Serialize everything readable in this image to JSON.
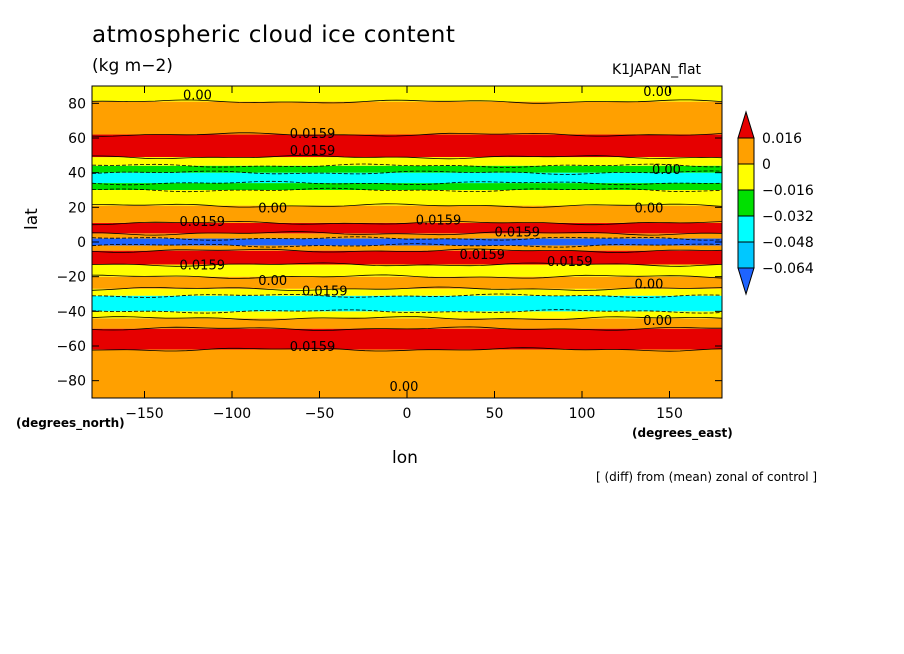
{
  "chart_data": {
    "type": "heatmap",
    "title": "atmospheric cloud ice content",
    "units": "(kg m−2)",
    "run_label": "K1JAPAN_flat",
    "note": "[ (diff) from (mean) zonal of control ]",
    "xlabel": "lon",
    "ylabel": "lat",
    "x_unit_label": "(degrees_east)",
    "y_unit_label": "(degrees_north)",
    "xlim": [
      -180,
      180
    ],
    "ylim": [
      -90,
      90
    ],
    "x_ticks": [
      -150,
      -100,
      -50,
      0,
      50,
      100,
      150
    ],
    "y_ticks": [
      -80,
      -60,
      -40,
      -20,
      0,
      20,
      40,
      60,
      80
    ],
    "x_tick_labels": [
      "−150",
      "−100",
      "−50",
      "0",
      "50",
      "100",
      "150"
    ],
    "y_tick_labels": [
      "−80",
      "−60",
      "−40",
      "−20",
      "0",
      "20",
      "40",
      "60",
      "80"
    ],
    "levels": [
      -0.064,
      -0.048,
      -0.032,
      -0.016,
      0,
      0.016
    ],
    "level_labels": [
      "−0.064",
      "−0.048",
      "−0.032",
      "−0.016",
      "0",
      "0.016"
    ],
    "colors": [
      "#1e64ff",
      "#00c8ff",
      "#00ffff",
      "#00e000",
      "#ffff00",
      "#ffa000",
      "#e60000"
    ],
    "bands": [
      {
        "lat_min": -90,
        "lat_max": -62,
        "class": 5
      },
      {
        "lat_min": -62,
        "lat_max": -50,
        "class": 6
      },
      {
        "lat_min": -50,
        "lat_max": -44,
        "class": 5
      },
      {
        "lat_min": -44,
        "lat_max": -40,
        "class": 4
      },
      {
        "lat_min": -40,
        "lat_max": -31,
        "class": 2
      },
      {
        "lat_min": -31,
        "lat_max": -27,
        "class": 4
      },
      {
        "lat_min": -27,
        "lat_max": -20,
        "class": 5
      },
      {
        "lat_min": -20,
        "lat_max": -13,
        "class": 4
      },
      {
        "lat_min": -13,
        "lat_max": -5,
        "class": 6
      },
      {
        "lat_min": -5,
        "lat_max": -2,
        "class": 5
      },
      {
        "lat_min": -2,
        "lat_max": 2,
        "class": 0
      },
      {
        "lat_min": 2,
        "lat_max": 5,
        "class": 5
      },
      {
        "lat_min": 5,
        "lat_max": 11,
        "class": 6
      },
      {
        "lat_min": 11,
        "lat_max": 21,
        "class": 5
      },
      {
        "lat_min": 21,
        "lat_max": 30,
        "class": 4
      },
      {
        "lat_min": 30,
        "lat_max": 34,
        "class": 3
      },
      {
        "lat_min": 34,
        "lat_max": 40,
        "class": 2
      },
      {
        "lat_min": 40,
        "lat_max": 44,
        "class": 3
      },
      {
        "lat_min": 44,
        "lat_max": 49,
        "class": 4
      },
      {
        "lat_min": 49,
        "lat_max": 62,
        "class": 6
      },
      {
        "lat_min": 62,
        "lat_max": 81,
        "class": 5
      },
      {
        "lat_min": 81,
        "lat_max": 90,
        "class": 4
      }
    ],
    "contour_labels": [
      {
        "text": "0.00",
        "lon": -128,
        "lat": 85
      },
      {
        "text": "0.00",
        "lon": 135,
        "lat": 87
      },
      {
        "text": "0.0159",
        "lon": -67,
        "lat": 63
      },
      {
        "text": "0.0159",
        "lon": -67,
        "lat": 53
      },
      {
        "text": "0.00",
        "lon": 140,
        "lat": 42
      },
      {
        "text": "0.0159",
        "lon": -130,
        "lat": 12
      },
      {
        "text": "0.0159",
        "lon": 5,
        "lat": 13
      },
      {
        "text": "0.00",
        "lon": -85,
        "lat": 20
      },
      {
        "text": "0.00",
        "lon": 130,
        "lat": 20
      },
      {
        "text": "0.0159",
        "lon": 50,
        "lat": 6
      },
      {
        "text": "0.0159",
        "lon": -130,
        "lat": -13
      },
      {
        "text": "0.0159",
        "lon": 30,
        "lat": -7
      },
      {
        "text": "0.0159",
        "lon": 80,
        "lat": -11
      },
      {
        "text": "0.00",
        "lon": -85,
        "lat": -22
      },
      {
        "text": "0.00",
        "lon": 130,
        "lat": -24
      },
      {
        "text": "0.0159",
        "lon": -60,
        "lat": -28
      },
      {
        "text": "0.00",
        "lon": 135,
        "lat": -45
      },
      {
        "text": "0.0159",
        "lon": -67,
        "lat": -60
      },
      {
        "text": "0.00",
        "lon": -10,
        "lat": -83
      }
    ]
  }
}
